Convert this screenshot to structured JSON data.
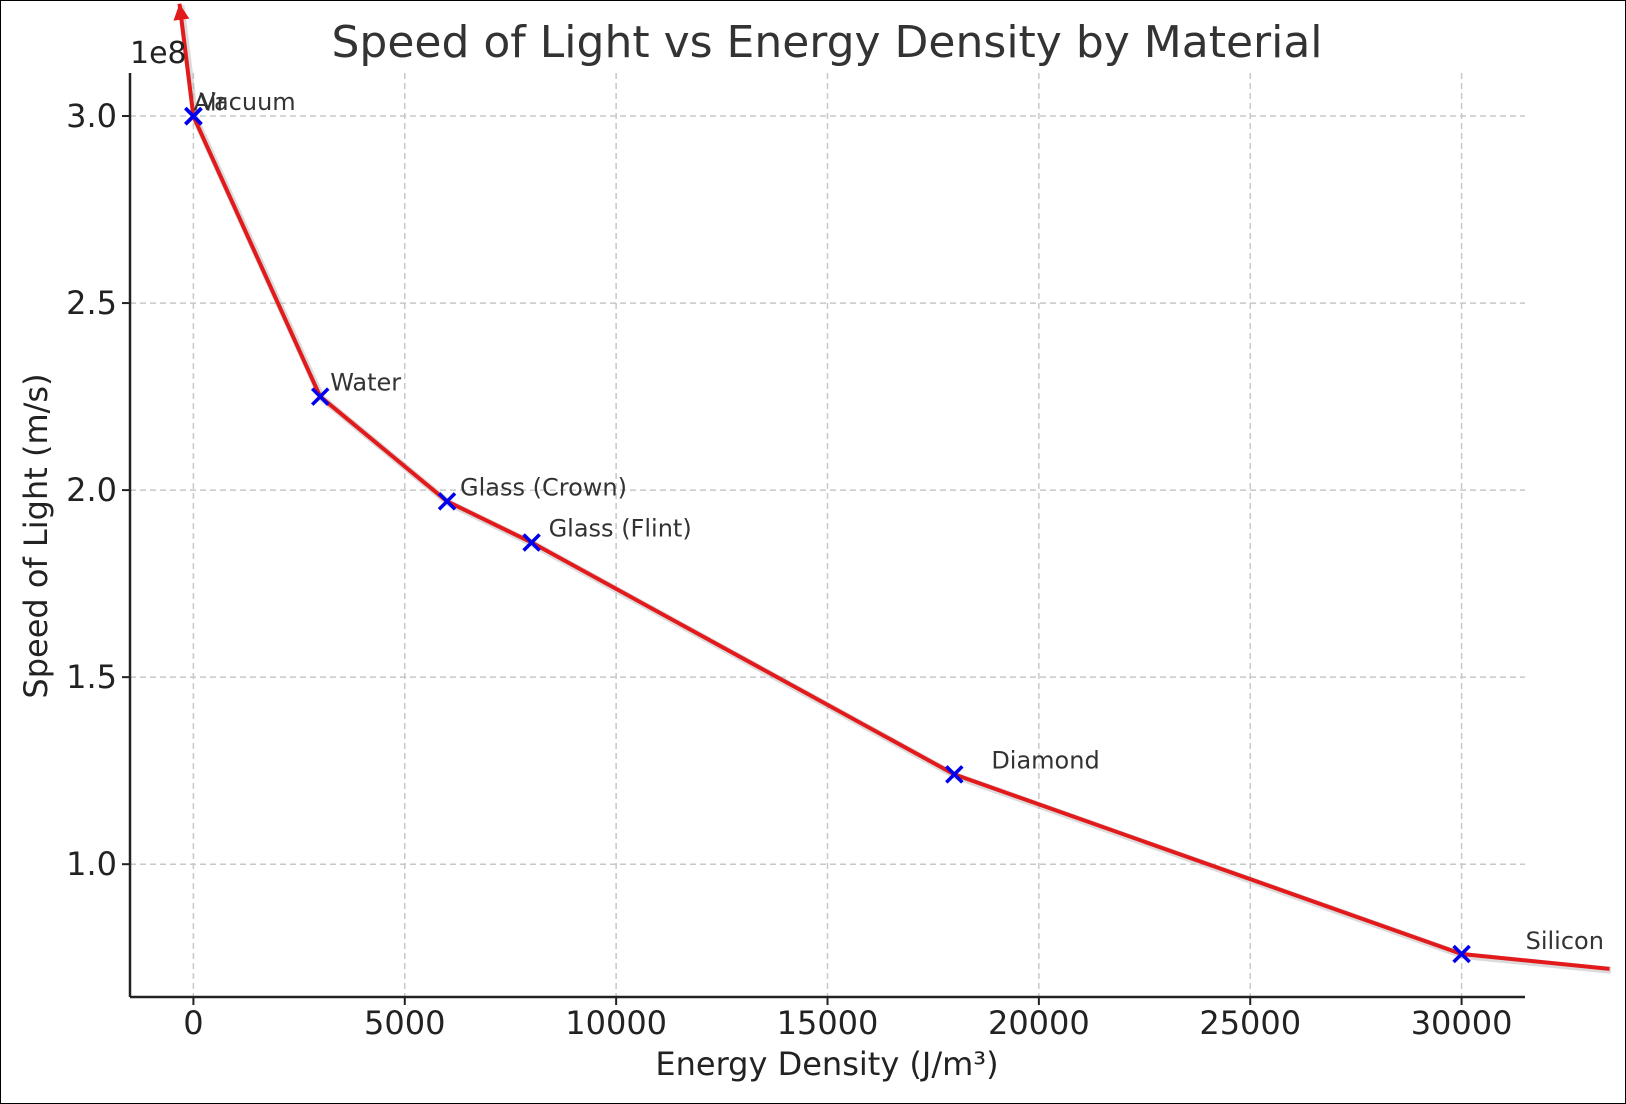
{
  "chart_data": {
    "type": "line",
    "title": "Speed of Light vs Energy Density by Material",
    "xlabel": "Energy Density (J/m³)",
    "ylabel": "Speed of Light (m/s)",
    "y_offset_label": "1e8",
    "xlim": [
      -1500,
      31500
    ],
    "ylim": [
      0.645,
      3.115
    ],
    "x_ticks": [
      0,
      5000,
      10000,
      15000,
      20000,
      25000,
      30000
    ],
    "x_tick_labels": [
      "0",
      "5000",
      "10000",
      "15000",
      "20000",
      "25000",
      "30000"
    ],
    "y_ticks": [
      1.0,
      1.5,
      2.0,
      2.5,
      3.0
    ],
    "y_tick_labels": [
      "1.0",
      "1.5",
      "2.0",
      "2.5",
      "3.0"
    ],
    "grid": true,
    "series": [
      {
        "points": [
          {
            "label": "Vacuum",
            "x": 0,
            "y": 3.0
          },
          {
            "label": "Air",
            "x": 1,
            "y": 2.999
          },
          {
            "label": "Water",
            "x": 3000,
            "y": 2.25
          },
          {
            "label": "Glass (Crown)",
            "x": 6000,
            "y": 1.97
          },
          {
            "label": "Glass (Flint)",
            "x": 8000,
            "y": 1.86
          },
          {
            "label": "Diamond",
            "x": 18000,
            "y": 1.24
          },
          {
            "label": "Silicon",
            "x": 30000,
            "y": 0.76
          }
        ]
      }
    ],
    "trend_line": {
      "color": "#e31a1c",
      "start": {
        "x": -330,
        "y": 3.3
      },
      "end": {
        "x": 33500,
        "y": 0.72
      }
    },
    "colors": {
      "marker": "#0000ee",
      "line": "#e31a1c"
    }
  }
}
